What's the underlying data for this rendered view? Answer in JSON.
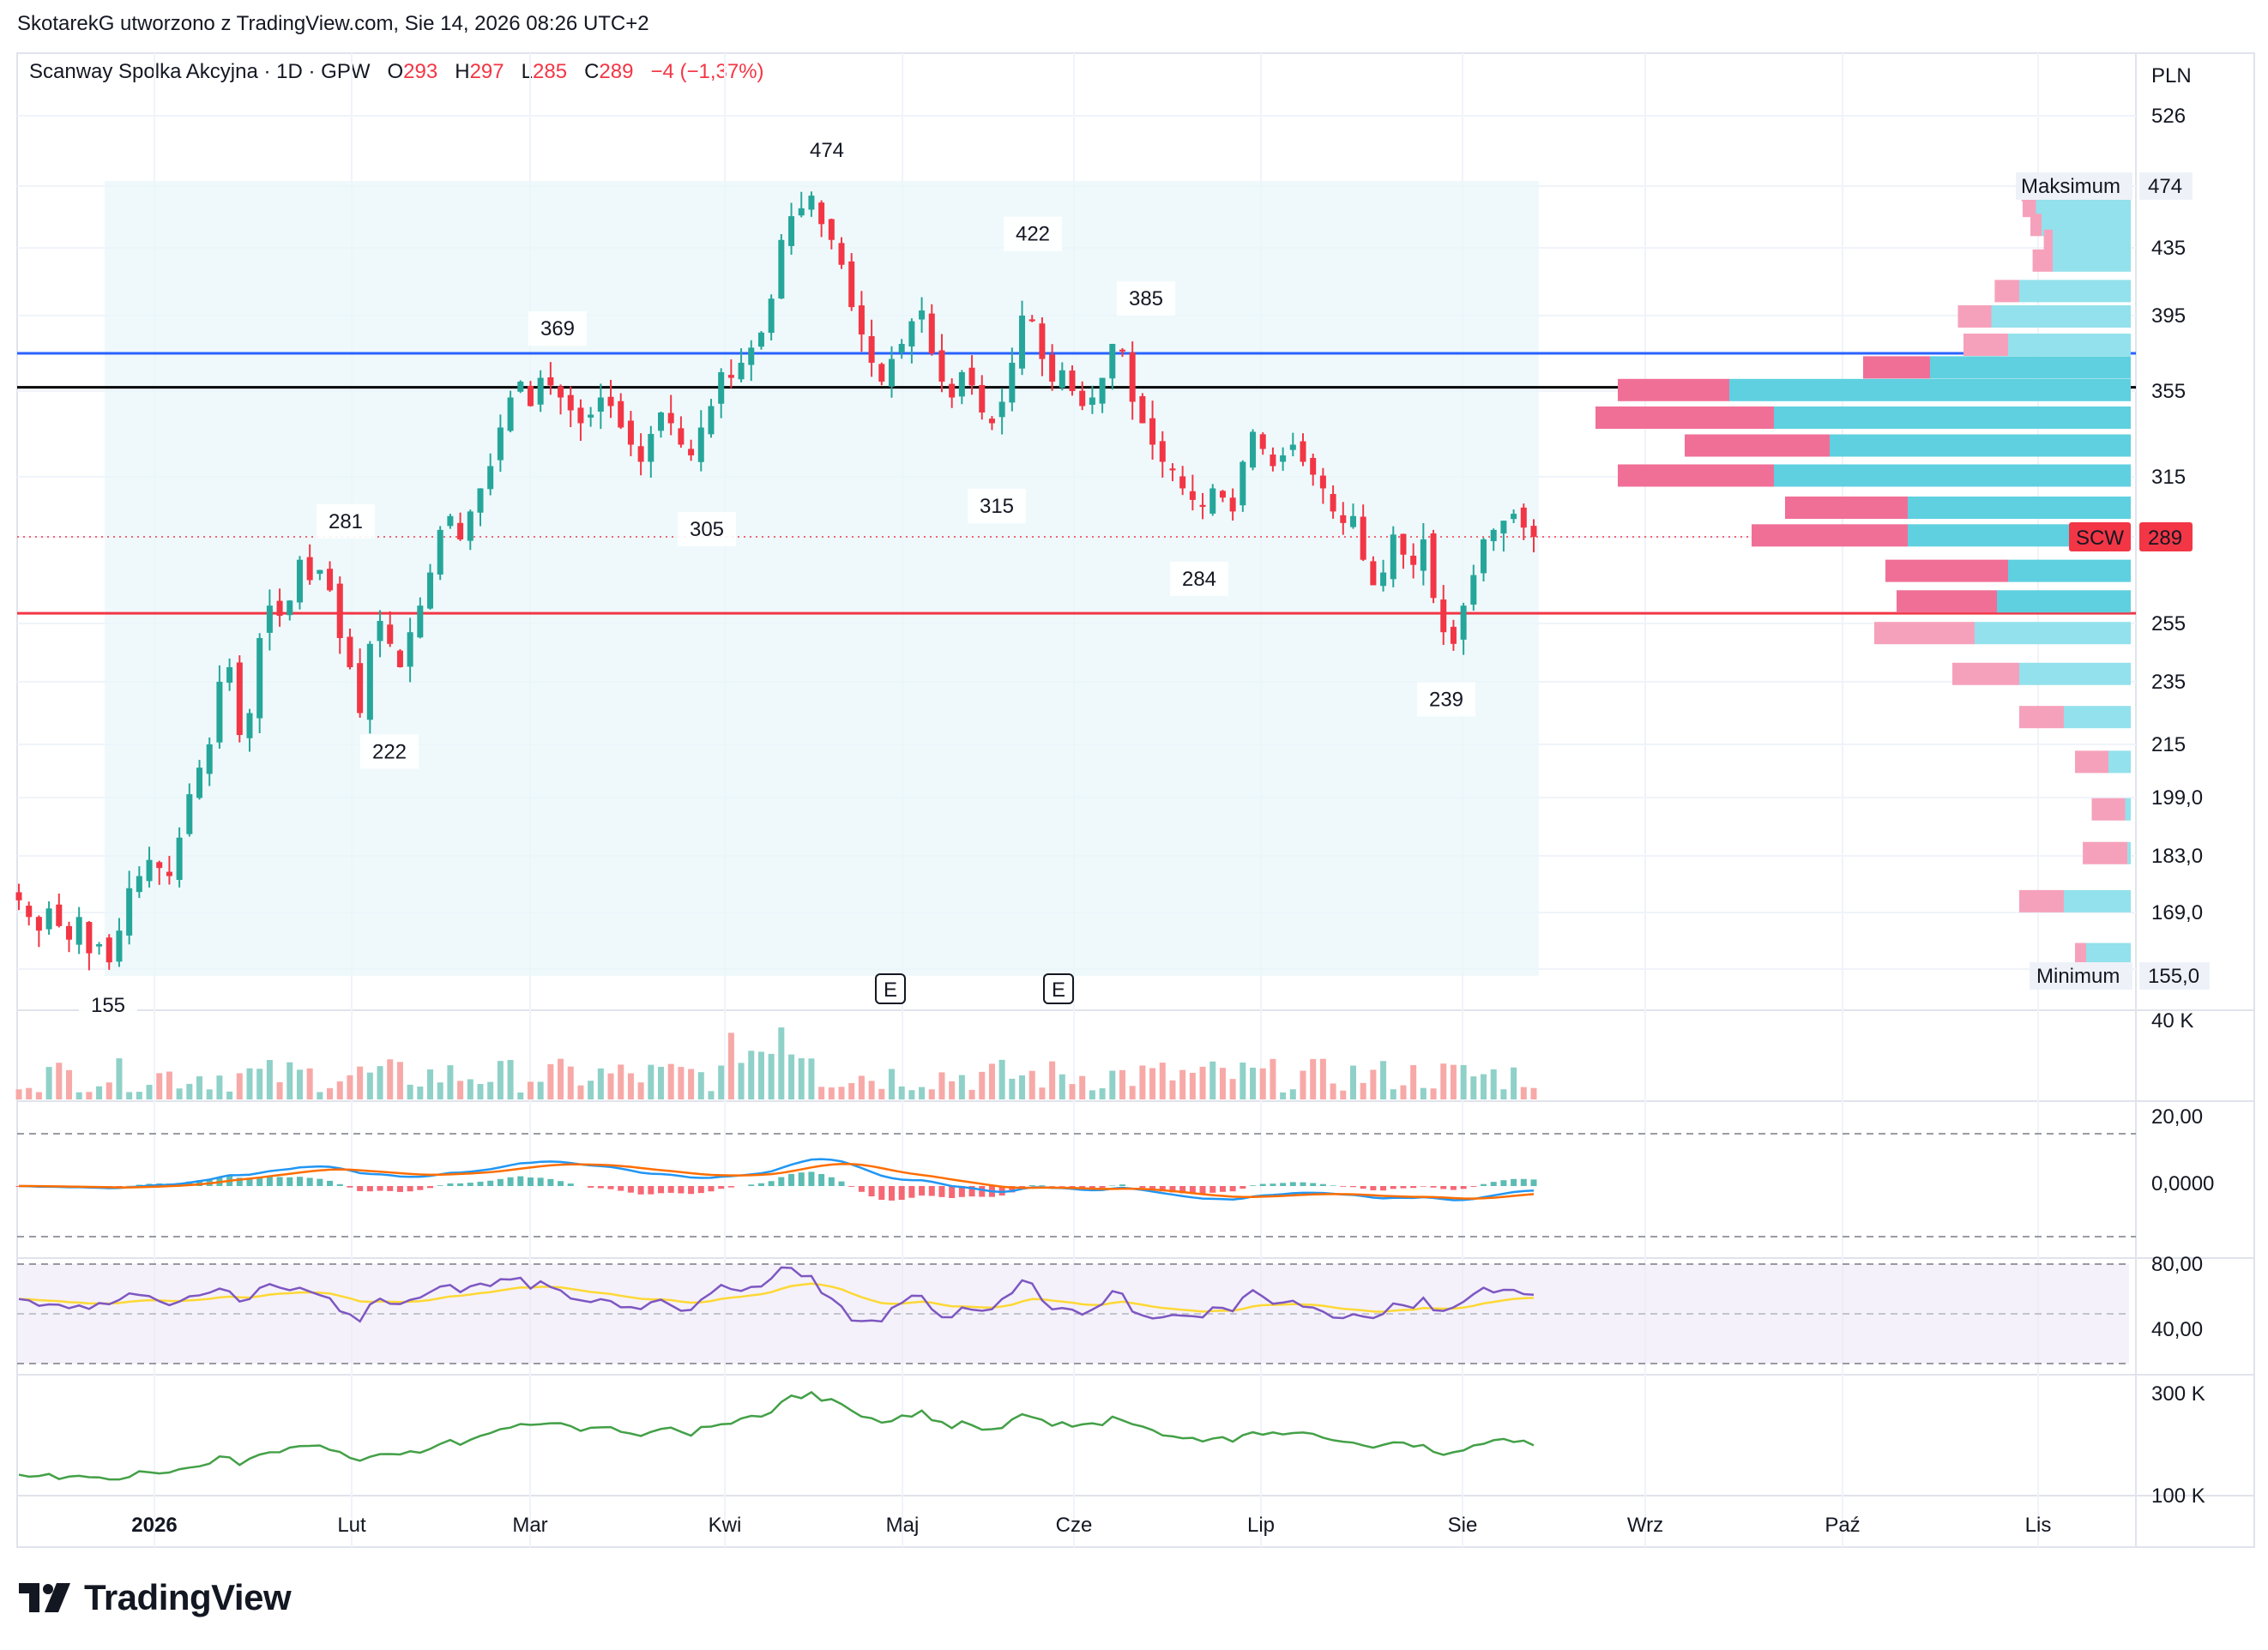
{
  "header": {
    "attribution": "SkotarekG utworzono z TradingView.com, Sie 14, 2026 08:26 UTC+2"
  },
  "symbol": {
    "name": "Scanway Spolka Akcyjna · 1D · GPW",
    "o_label": "O",
    "o_value": "293",
    "h_label": "H",
    "h_value": "297",
    "l_label": "L",
    "l_value": "285",
    "c_label": "C",
    "c_value": "289",
    "change": "−4 (−1,37%)"
  },
  "brand": {
    "name": "TradingView"
  },
  "colors": {
    "up": "#26a69a",
    "down": "#f23645",
    "upVol": "#8fd1c8",
    "downVol": "#f7a9a7",
    "blueLine": "#2962ff",
    "blackLine": "#000000",
    "redLine": "#f23645",
    "vpBlue": "#5fd0e0",
    "vpBlueLight": "#93e1ec",
    "vpPink": "#f06f97",
    "vpPinkLight": "#f6a1bb",
    "macdLine": "#2196f3",
    "signalLine": "#ff6d00",
    "rsiLine": "#7e57c2",
    "rsiMa": "#fdd835",
    "obv": "#43a047"
  },
  "chart_data": {
    "type": "candlestick",
    "currency": "PLN",
    "price_axis_labels": [
      "526",
      "474",
      "435",
      "395",
      "355",
      "315",
      "289",
      "255",
      "235",
      "215",
      "199,0",
      "183,0",
      "169,0",
      "155,0"
    ],
    "time_axis_labels": [
      "2026",
      "Lut",
      "Mar",
      "Kwi",
      "Maj",
      "Cze",
      "Lip",
      "Sie",
      "Wrz",
      "Paź",
      "Lis"
    ],
    "price_annotations": [
      {
        "label": "474",
        "value": 474
      },
      {
        "label": "422",
        "value": 422
      },
      {
        "label": "385",
        "value": 385
      },
      {
        "label": "369",
        "value": 369
      },
      {
        "label": "281",
        "value": 281
      },
      {
        "label": "305",
        "value": 305
      },
      {
        "label": "315",
        "value": 315
      },
      {
        "label": "284",
        "value": 284
      },
      {
        "label": "222",
        "value": 222
      },
      {
        "label": "239",
        "value": 239
      },
      {
        "label": "155",
        "value": 155
      }
    ],
    "horizontal_lines": [
      {
        "value": 375,
        "color": "blue"
      },
      {
        "value": 357,
        "color": "black"
      },
      {
        "value": 259,
        "color": "red"
      }
    ],
    "range_markers": {
      "max_label": "Maksimum",
      "max_value": "474",
      "min_label": "Minimum",
      "min_value": "155,0"
    },
    "last_price": {
      "ticker": "SCW",
      "value": "289"
    },
    "events": [
      "E",
      "E"
    ],
    "close_series": [
      172,
      168,
      165,
      170,
      166,
      163,
      168,
      160,
      162,
      158,
      165,
      175,
      178,
      182,
      180,
      178,
      188,
      200,
      208,
      215,
      235,
      240,
      218,
      225,
      250,
      262,
      258,
      264,
      280,
      272,
      276,
      268,
      250,
      240,
      225,
      248,
      256,
      248,
      240,
      252,
      262,
      275,
      292,
      298,
      288,
      300,
      310,
      320,
      338,
      352,
      360,
      348,
      362,
      358,
      352,
      346,
      340,
      344,
      352,
      348,
      338,
      330,
      322,
      335,
      345,
      340,
      330,
      325,
      338,
      348,
      365,
      362,
      370,
      378,
      386,
      405,
      440,
      455,
      460,
      468,
      450,
      440,
      425,
      400,
      385,
      370,
      360,
      372,
      380,
      392,
      398,
      375,
      360,
      352,
      365,
      358,
      345,
      340,
      350,
      370,
      395,
      392,
      372,
      360,
      366,
      355,
      348,
      352,
      362,
      380,
      376,
      350,
      340,
      330,
      322,
      318,
      310,
      305,
      302,
      310,
      306,
      300,
      322,
      336,
      328,
      320,
      325,
      330,
      322,
      316,
      310,
      300,
      295,
      298,
      280,
      270,
      275,
      290,
      282,
      278,
      288,
      265,
      252,
      248,
      262,
      274,
      288,
      292,
      296,
      299,
      293,
      289
    ],
    "volume_axis_label": "40 K",
    "macd_axis_labels": [
      "20,00",
      "0,0000"
    ],
    "rsi_axis_labels": [
      "80,00",
      "40,00"
    ],
    "obv_axis_labels": [
      "300 K",
      "100 K"
    ],
    "volume_profile": [
      {
        "price": 472,
        "left": 0.08,
        "right": 0.9
      },
      {
        "price": 462,
        "left": 0.12,
        "right": 0.85
      },
      {
        "price": 450,
        "left": 0.1,
        "right": 0.8
      },
      {
        "price": 440,
        "left": 0.08,
        "right": 0.7
      },
      {
        "price": 428,
        "left": 0.18,
        "right": 0.7
      },
      {
        "price": 410,
        "left": 0.22,
        "right": 1.0
      },
      {
        "price": 395,
        "left": 0.3,
        "right": 1.25
      },
      {
        "price": 380,
        "left": 0.4,
        "right": 1.1
      },
      {
        "price": 368,
        "left": 0.6,
        "right": 1.8
      },
      {
        "price": 356,
        "left": 1.0,
        "right": 3.6
      },
      {
        "price": 343,
        "left": 1.6,
        "right": 3.2
      },
      {
        "price": 330,
        "left": 1.3,
        "right": 2.7
      },
      {
        "price": 316,
        "left": 1.4,
        "right": 3.2
      },
      {
        "price": 302,
        "left": 1.1,
        "right": 2.0
      },
      {
        "price": 290,
        "left": 1.4,
        "right": 2.0
      },
      {
        "price": 276,
        "left": 1.1,
        "right": 1.1
      },
      {
        "price": 264,
        "left": 0.9,
        "right": 1.2
      },
      {
        "price": 252,
        "left": 0.9,
        "right": 1.4
      },
      {
        "price": 238,
        "left": 0.6,
        "right": 1.0
      },
      {
        "price": 224,
        "left": 0.4,
        "right": 0.6
      },
      {
        "price": 210,
        "left": 0.3,
        "right": 0.2
      },
      {
        "price": 196,
        "left": 0.3,
        "right": 0.05
      },
      {
        "price": 184,
        "left": 0.4,
        "right": 0.03
      },
      {
        "price": 172,
        "left": 0.4,
        "right": 0.6
      },
      {
        "price": 160,
        "left": 0.1,
        "right": 0.4
      }
    ]
  }
}
